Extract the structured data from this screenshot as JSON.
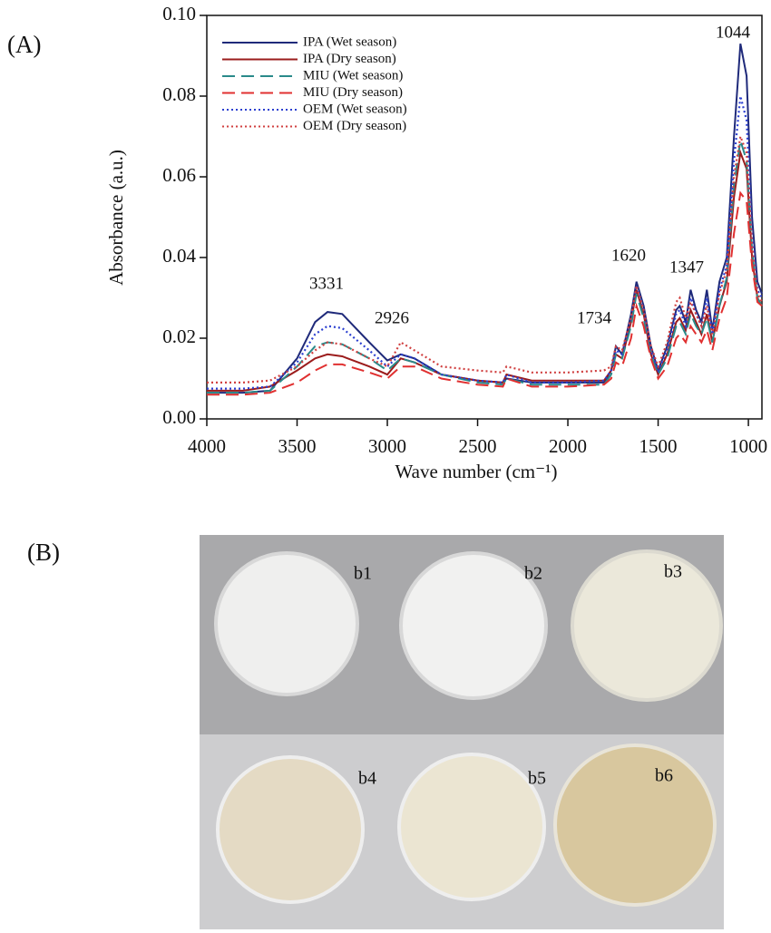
{
  "panel_labels": [
    "(A)",
    "(B)"
  ],
  "photo_labels": [
    "b1",
    "b2",
    "b3",
    "b4",
    "b5",
    "b6"
  ],
  "chart_data": {
    "type": "line",
    "xlabel": "Wave number (cm⁻¹)",
    "ylabel": "Absorbance (a.u.)",
    "xlim": [
      4000,
      925
    ],
    "ylim": [
      0,
      0.1
    ],
    "xticks": [
      4000,
      3500,
      3000,
      2500,
      2000,
      1500,
      1000
    ],
    "yticks": [
      {
        "value": 0,
        "label": "0.00"
      },
      {
        "value": 0.02,
        "label": "0.02"
      },
      {
        "value": 0.04,
        "label": "0.04"
      },
      {
        "value": 0.06,
        "label": "0.06"
      },
      {
        "value": 0.08,
        "label": "0.08"
      },
      {
        "value": 0.1,
        "label": "0.10"
      }
    ],
    "legend": "upper left",
    "annotations": [
      "3331",
      "2926",
      "1734",
      "1620",
      "1347",
      "1044"
    ],
    "x": [
      4000,
      3800,
      3650,
      3500,
      3400,
      3331,
      3250,
      3100,
      3000,
      2926,
      2850,
      2700,
      2500,
      2360,
      2340,
      2200,
      2000,
      1800,
      1760,
      1734,
      1700,
      1650,
      1620,
      1580,
      1540,
      1500,
      1450,
      1400,
      1380,
      1347,
      1320,
      1290,
      1260,
      1230,
      1200,
      1160,
      1120,
      1080,
      1044,
      1010,
      980,
      950,
      925
    ],
    "series": [
      {
        "name": "IPA (Wet season)",
        "color": "#1f2a7a",
        "style": "solid",
        "values": [
          0.0065,
          0.0065,
          0.007,
          0.015,
          0.024,
          0.0265,
          0.026,
          0.019,
          0.0145,
          0.016,
          0.015,
          0.011,
          0.0095,
          0.009,
          0.01,
          0.009,
          0.009,
          0.009,
          0.012,
          0.018,
          0.016,
          0.026,
          0.034,
          0.028,
          0.018,
          0.012,
          0.018,
          0.027,
          0.028,
          0.024,
          0.032,
          0.027,
          0.024,
          0.032,
          0.022,
          0.034,
          0.04,
          0.07,
          0.093,
          0.085,
          0.05,
          0.034,
          0.031
        ]
      },
      {
        "name": "IPA (Dry season)",
        "color": "#9b1c1c",
        "style": "solid",
        "values": [
          0.007,
          0.007,
          0.008,
          0.012,
          0.015,
          0.016,
          0.0155,
          0.013,
          0.011,
          0.015,
          0.014,
          0.011,
          0.0095,
          0.009,
          0.011,
          0.0095,
          0.0095,
          0.0095,
          0.012,
          0.016,
          0.015,
          0.024,
          0.032,
          0.026,
          0.016,
          0.011,
          0.016,
          0.024,
          0.025,
          0.022,
          0.027,
          0.024,
          0.021,
          0.026,
          0.019,
          0.028,
          0.034,
          0.055,
          0.066,
          0.062,
          0.04,
          0.03,
          0.028
        ]
      },
      {
        "name": "MIU (Wet season)",
        "color": "#2a8a8a",
        "style": "dashed",
        "values": [
          0.0065,
          0.0065,
          0.007,
          0.013,
          0.018,
          0.019,
          0.0185,
          0.015,
          0.012,
          0.015,
          0.014,
          0.011,
          0.009,
          0.0085,
          0.01,
          0.0085,
          0.0085,
          0.0085,
          0.011,
          0.016,
          0.015,
          0.023,
          0.031,
          0.025,
          0.016,
          0.011,
          0.015,
          0.023,
          0.024,
          0.021,
          0.026,
          0.023,
          0.021,
          0.025,
          0.019,
          0.028,
          0.035,
          0.058,
          0.069,
          0.064,
          0.042,
          0.03,
          0.028
        ]
      },
      {
        "name": "MIU (Dry season)",
        "color": "#e03030",
        "style": "dashed",
        "values": [
          0.006,
          0.006,
          0.0065,
          0.009,
          0.012,
          0.0135,
          0.0135,
          0.0115,
          0.01,
          0.013,
          0.013,
          0.01,
          0.0085,
          0.008,
          0.01,
          0.008,
          0.008,
          0.0085,
          0.01,
          0.014,
          0.013,
          0.02,
          0.028,
          0.023,
          0.015,
          0.01,
          0.013,
          0.02,
          0.021,
          0.019,
          0.023,
          0.021,
          0.019,
          0.022,
          0.017,
          0.025,
          0.03,
          0.046,
          0.056,
          0.054,
          0.038,
          0.029,
          0.028
        ]
      },
      {
        "name": "OEM (Wet season)",
        "color": "#2b3fd0",
        "style": "dotted",
        "values": [
          0.0075,
          0.0075,
          0.008,
          0.014,
          0.021,
          0.023,
          0.0225,
          0.017,
          0.013,
          0.016,
          0.015,
          0.011,
          0.0095,
          0.009,
          0.011,
          0.009,
          0.009,
          0.0095,
          0.012,
          0.017,
          0.016,
          0.025,
          0.033,
          0.027,
          0.017,
          0.012,
          0.017,
          0.026,
          0.027,
          0.023,
          0.03,
          0.026,
          0.023,
          0.03,
          0.021,
          0.032,
          0.038,
          0.064,
          0.08,
          0.074,
          0.045,
          0.032,
          0.03
        ]
      },
      {
        "name": "OEM (Dry season)",
        "color": "#d04040",
        "style": "dotted",
        "values": [
          0.009,
          0.009,
          0.0095,
          0.013,
          0.017,
          0.019,
          0.0185,
          0.015,
          0.013,
          0.019,
          0.017,
          0.013,
          0.012,
          0.0115,
          0.013,
          0.0115,
          0.0115,
          0.012,
          0.013,
          0.018,
          0.017,
          0.025,
          0.033,
          0.027,
          0.018,
          0.013,
          0.019,
          0.029,
          0.03,
          0.025,
          0.029,
          0.026,
          0.023,
          0.028,
          0.021,
          0.031,
          0.037,
          0.06,
          0.07,
          0.066,
          0.043,
          0.031,
          0.029
        ]
      }
    ]
  }
}
